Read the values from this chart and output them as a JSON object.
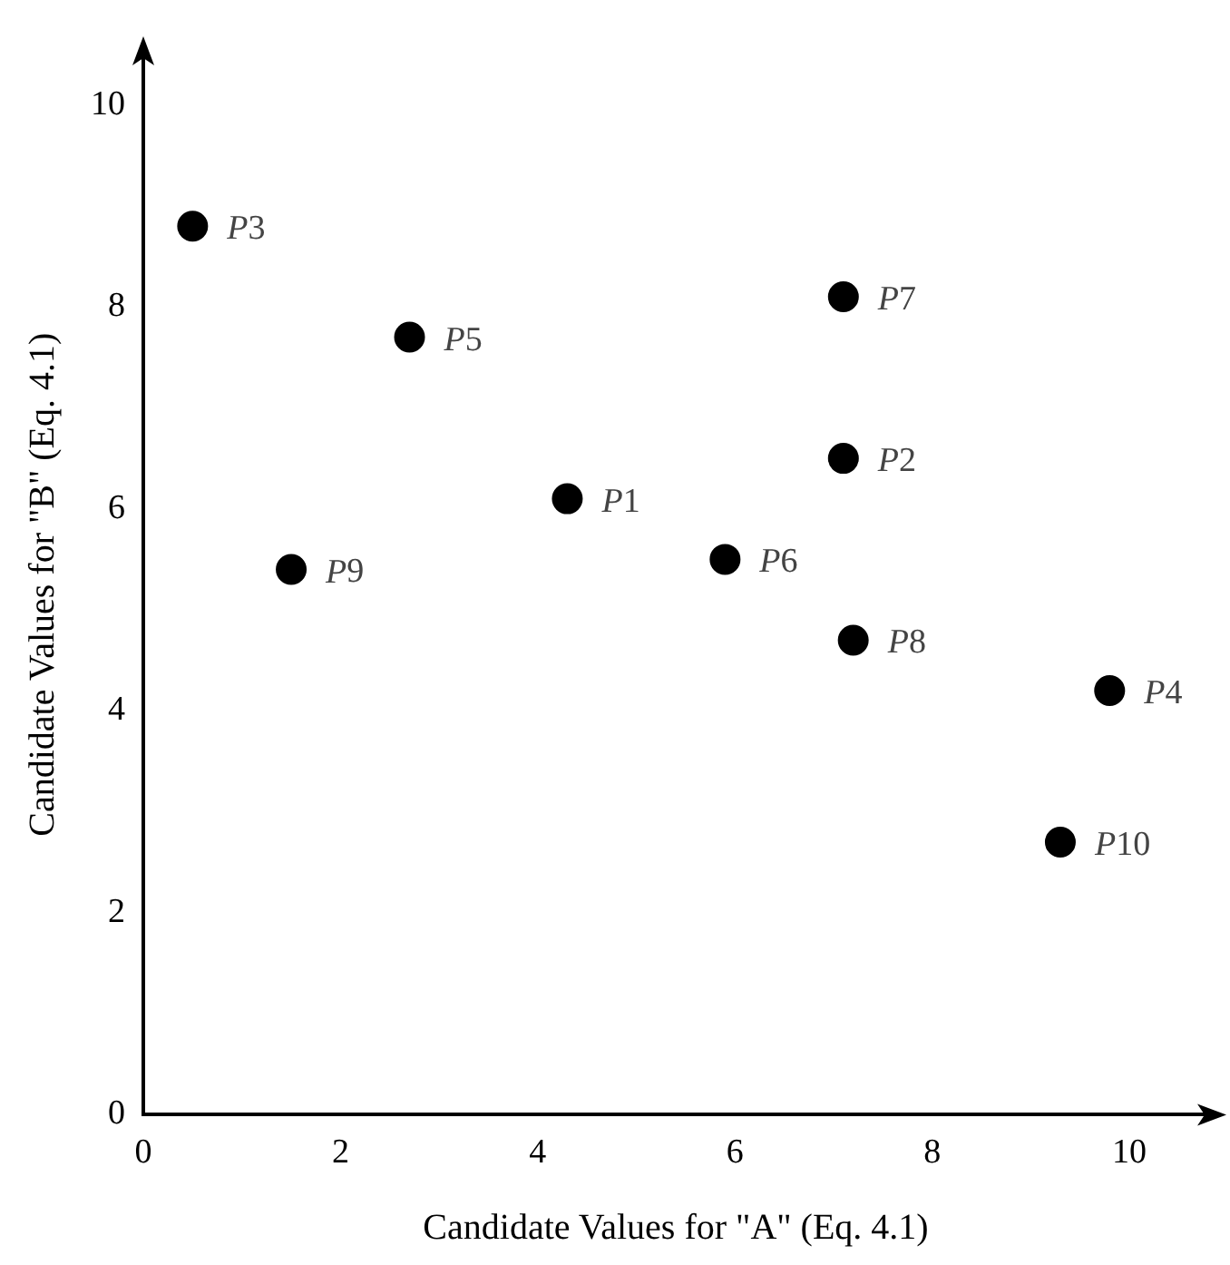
{
  "chart_data": {
    "type": "scatter",
    "xlabel": "Candidate Values for \"A\" (Eq. 4.1)",
    "ylabel": "Candidate Values for \"B\" (Eq. 4.1)",
    "x": [
      4.3,
      7.1,
      0.5,
      9.8,
      2.7,
      5.9,
      7.1,
      7.2,
      1.5,
      9.3
    ],
    "series": [
      {
        "color": "#000000",
        "values": [
          6.1,
          6.5,
          8.8,
          4.2,
          7.7,
          5.5,
          8.1,
          4.7,
          5.4,
          2.7
        ]
      }
    ],
    "annotations": [
      {
        "text": "P1",
        "x": 4.3,
        "y": 6.1
      },
      {
        "text": "P2",
        "x": 7.1,
        "y": 6.5
      },
      {
        "text": "P3",
        "x": 0.5,
        "y": 8.8
      },
      {
        "text": "P4",
        "x": 9.8,
        "y": 4.2
      },
      {
        "text": "P5",
        "x": 2.7,
        "y": 7.7
      },
      {
        "text": "P6",
        "x": 5.9,
        "y": 5.5
      },
      {
        "text": "P7",
        "x": 7.1,
        "y": 8.1
      },
      {
        "text": "P8",
        "x": 7.2,
        "y": 4.7
      },
      {
        "text": "P9",
        "x": 1.5,
        "y": 5.4
      },
      {
        "text": "P10",
        "x": 9.3,
        "y": 2.7
      }
    ],
    "xlim": [
      0,
      10.8
    ],
    "ylim": [
      0,
      10.5
    ],
    "xticks": [
      0,
      2,
      4,
      6,
      8,
      10
    ],
    "yticks": [
      0,
      2,
      4,
      6,
      8,
      10
    ],
    "grid": false,
    "legend": false,
    "marker": "circle"
  }
}
